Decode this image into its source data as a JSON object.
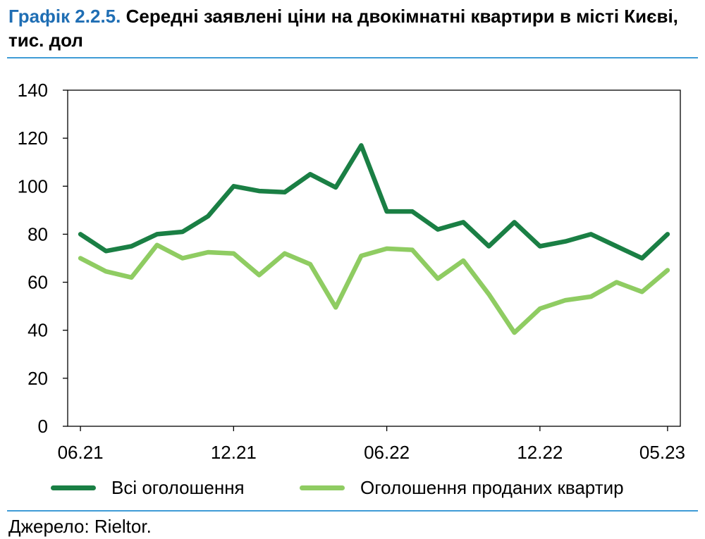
{
  "title": {
    "label": "Графік 2.2.5.",
    "text": " Середні заявлені ціни на двокімнатні квартири в місті Києві, тис. дол"
  },
  "source": "Джерело: Rieltor.",
  "colors": {
    "title_label": "#1f6eb4",
    "rule": "#3f9bd6",
    "series_all": "#1a7f44",
    "series_sold": "#8fcc62"
  },
  "chart_data": {
    "type": "line",
    "title": "Середні заявлені ціни на двокімнатні квартири в місті Києві, тис. дол",
    "xlabel": "",
    "ylabel": "",
    "ylim": [
      0,
      140
    ],
    "yticks": [
      0,
      20,
      40,
      60,
      80,
      100,
      120,
      140
    ],
    "grid": false,
    "legend_position": "bottom",
    "x": [
      "06.21",
      "07.21",
      "08.21",
      "09.21",
      "10.21",
      "11.21",
      "12.21",
      "01.22",
      "02.22",
      "03.22",
      "04.22",
      "05.22",
      "06.22",
      "07.22",
      "08.22",
      "09.22",
      "10.22",
      "11.22",
      "12.22",
      "01.23",
      "02.23",
      "03.23",
      "04.23",
      "05.23"
    ],
    "xtick_labels": [
      "06.21",
      "12.21",
      "06.22",
      "12.22",
      "05.23"
    ],
    "series": [
      {
        "name": "Всі оголошення",
        "color": "#1a7f44",
        "values": [
          80,
          73,
          75,
          80,
          81,
          87.5,
          100,
          98,
          97.5,
          105,
          99.5,
          117,
          89.5,
          89.5,
          82,
          85,
          75,
          85,
          75,
          77,
          80,
          75,
          70,
          80
        ]
      },
      {
        "name": "Оголошення проданих квартир",
        "color": "#8fcc62",
        "values": [
          70,
          64.5,
          62,
          75.5,
          70,
          72.5,
          72,
          63,
          72,
          67.5,
          49.5,
          71,
          74,
          73.5,
          61.5,
          69,
          55,
          39,
          49,
          52.5,
          54,
          60,
          56,
          65
        ]
      }
    ]
  }
}
